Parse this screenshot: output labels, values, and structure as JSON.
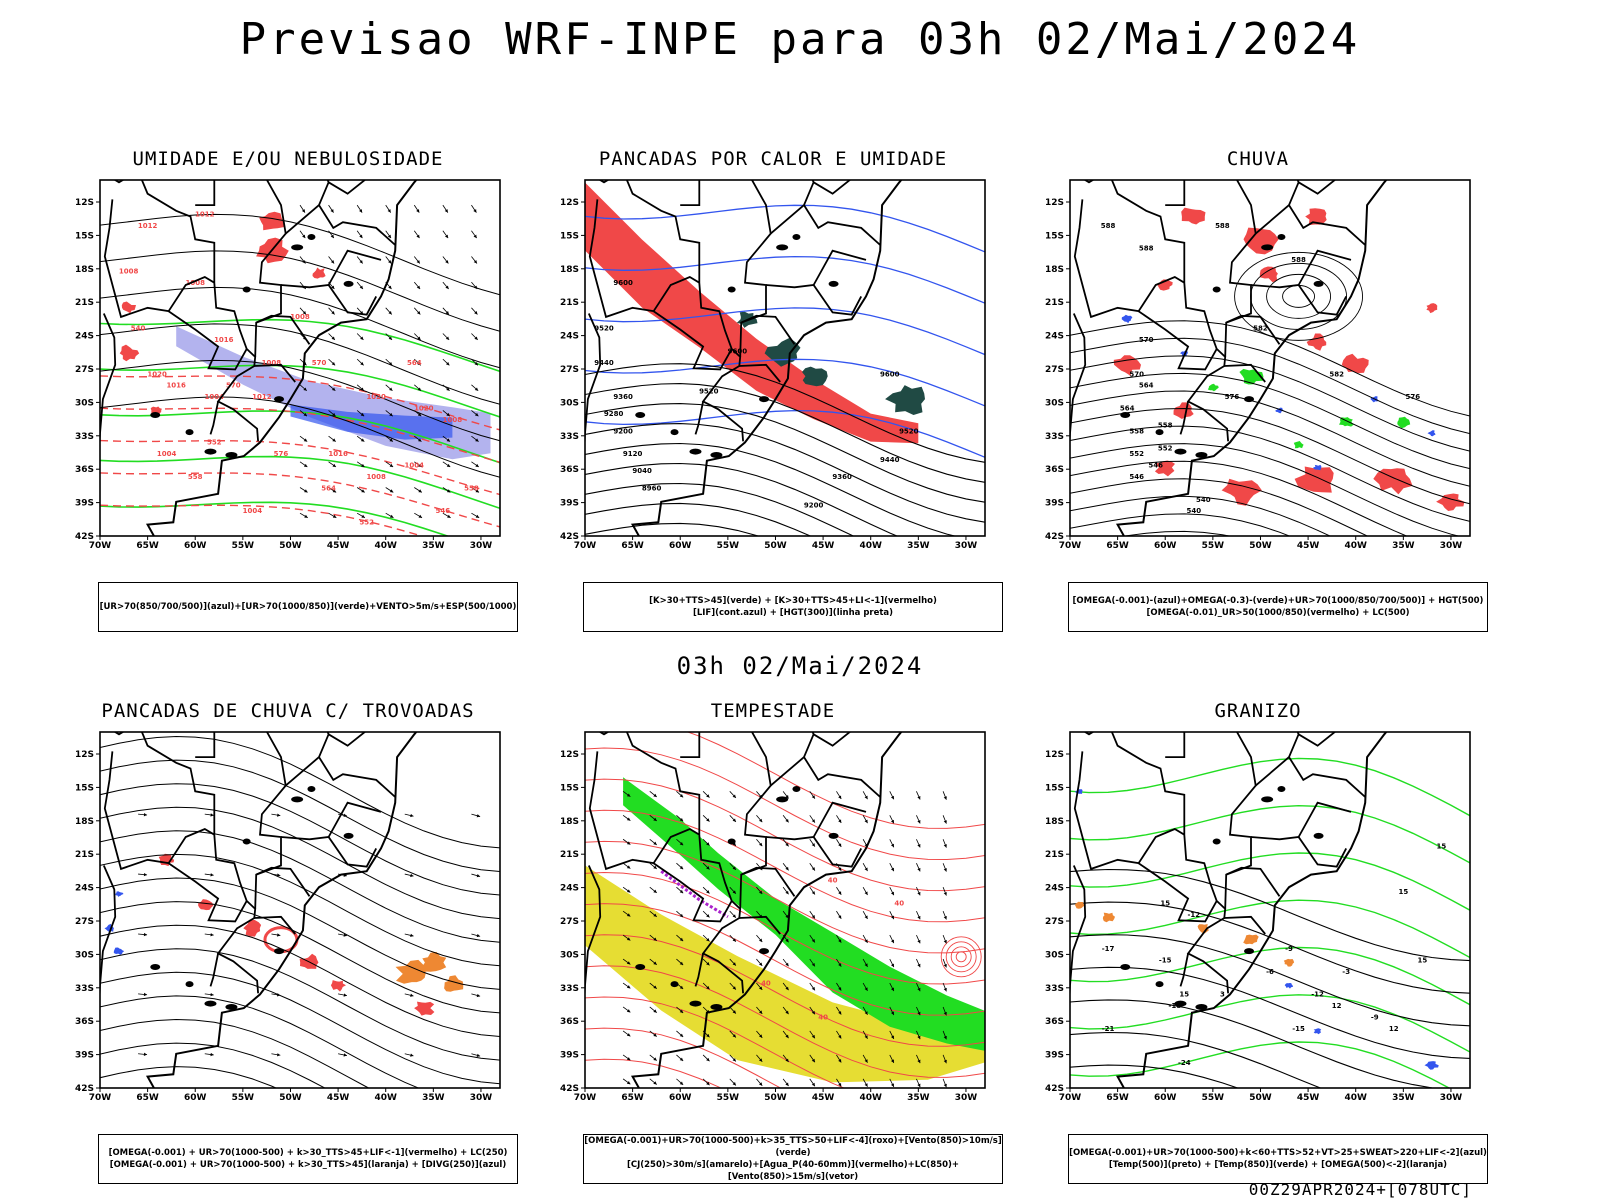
{
  "main_title": "Previsao WRF-INPE  para 03h 02/Mai/2024",
  "sub_title": "03h 02/Mai/2024",
  "footer": "00Z29APR2024+[078UTC]",
  "axes": {
    "lat_ticks": [
      "12S",
      "15S",
      "18S",
      "21S",
      "24S",
      "27S",
      "30S",
      "33S",
      "36S",
      "39S",
      "42S"
    ],
    "lon_ticks": [
      "70W",
      "65W",
      "60W",
      "55W",
      "50W",
      "45W",
      "40W",
      "35W",
      "30W"
    ]
  },
  "colors": {
    "red": "#f04848",
    "green": "#22dd22",
    "blue": "#3355ee",
    "lavender": "#9a9ae8",
    "teal": "#204a44",
    "yellow": "#e6dd33",
    "orange": "#ee8833",
    "purple": "#aa22cc",
    "black": "#000000"
  },
  "panels": [
    {
      "title": "UMIDADE E/OU NEBULOSIDADE",
      "legend": [
        "[UR>70(850/700/500)](azul)+[UR>70(1000/850)](verde)+VENTO>5m/s+ESP(500/1000)"
      ],
      "contour_labels": [
        "1012",
        "1008",
        "1008",
        "1016",
        "1020",
        "1020",
        "1008",
        "1012",
        "1008",
        "1004",
        "1012",
        "1016",
        "1008",
        "1004",
        "1008",
        "1004",
        "1004",
        "570",
        "570",
        "576",
        "564",
        "558",
        "552",
        "546",
        "540",
        "564",
        "552",
        "558",
        "1016",
        "1020"
      ]
    },
    {
      "title": "PANCADAS POR CALOR E UMIDADE",
      "legend": [
        "[K>30+TTS>45](verde)  +  [K>30+TTS>45+LI<-1](vermelho)",
        "[LIF](cont.azul)  +  [HGT(300)](linha preta)"
      ],
      "contour_labels": [
        "9600",
        "9520",
        "9440",
        "9360",
        "9280",
        "9200",
        "9120",
        "9040",
        "8960",
        "9600",
        "9520",
        "9600",
        "9520",
        "9440",
        "9360",
        "9200"
      ]
    },
    {
      "title": "CHUVA",
      "legend": [
        "[OMEGA(-0.001)-(azul)+OMEGA(-0.3)-(verde)+UR>70(1000/850/700/500)]  +  HGT(500)",
        "[OMEGA(-0.01)_UR>50(1000/850)(vermelho)  +  LC(500)"
      ],
      "contour_labels": [
        "588",
        "588",
        "588",
        "582",
        "576",
        "570",
        "564",
        "558",
        "552",
        "546",
        "540",
        "582",
        "576",
        "588",
        "570",
        "564",
        "558",
        "552",
        "546",
        "540"
      ]
    },
    {
      "title": "PANCADAS DE CHUVA C/ TROVOADAS",
      "legend": [
        "[OMEGA(-0.001)  +  UR>70(1000-500)  +  k>30_TTS>45+LIF<-1](vermelho)  +  LC(250)",
        "[OMEGA(-0.001)  +  UR>70(1000-500)  +  k>30_TTS>45](laranja)  +  [DIVG(250)](azul)"
      ],
      "contour_labels": []
    },
    {
      "title": "TEMPESTADE",
      "legend": [
        "[OMEGA(-0.001)+UR>70(1000-500)+k>35_TTS>50+LIF<-4](roxo)+[Vento(850)>10m/s](verde)",
        "[CJ(250)>30m/s](amarelo)+[Agua_P(40-60mm)](vermelho)+LC(850)+[Vento(850)>15m/s](vetor)"
      ],
      "contour_labels": [
        "40",
        "40",
        "40",
        "40"
      ]
    },
    {
      "title": "GRANIZO",
      "legend": [
        "[OMEGA(-0.001)+UR>70(1000-500)+k<60+TTS>52+VT>25+SWEAT>220+LIF<-2](azul)",
        "[Temp(500)](preto)  +  [Temp(850)](verde)  +  [OMEGA(500)<-2](laranja)"
      ],
      "contour_labels": [
        "15",
        "15",
        "15",
        "15",
        "15",
        "12",
        "12",
        "-12",
        "-9",
        "-15",
        "-18",
        "-21",
        "-24",
        "-17",
        "-15",
        "-12",
        "-9",
        "-6",
        "-3",
        "3"
      ]
    }
  ]
}
